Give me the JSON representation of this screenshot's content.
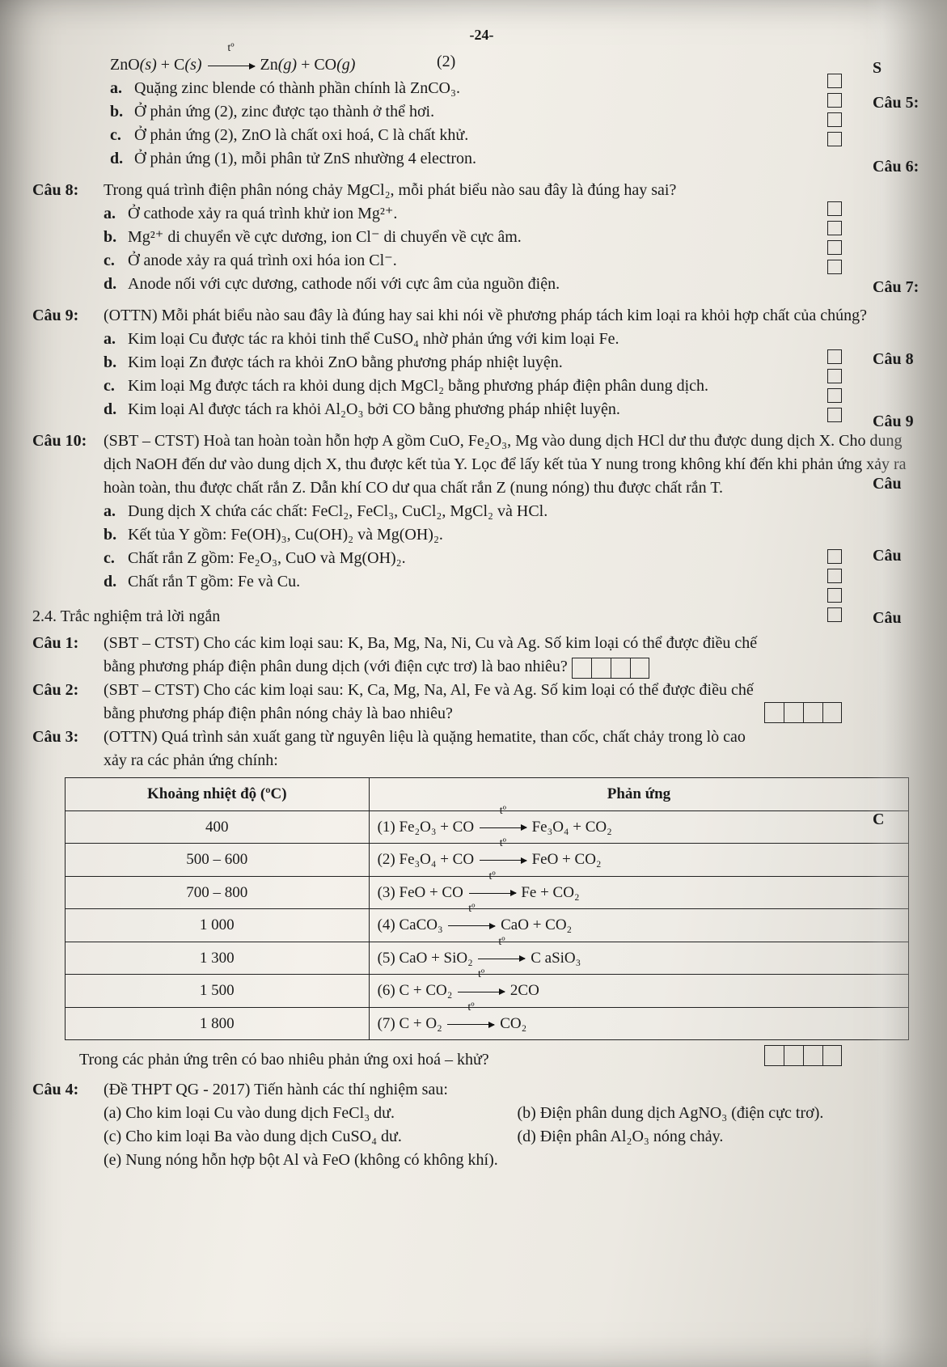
{
  "page_number": "-24-",
  "eq_marker": "(2)",
  "top_equation": "ZnO(s) + C(s)  →  Zn(g) + CO(g)",
  "top_equation_condition": "tº",
  "cau7_prev": {
    "a": "Quặng zinc blende có thành phần chính là ZnCO₃.",
    "b": "Ở phản ứng (2), zinc được tạo thành ở thể hơi.",
    "c": "Ở phản ứng (2), ZnO là chất oxi hoá, C là chất khử.",
    "d": "Ở phản ứng (1), mỗi phân tử ZnS nhường 4 electron."
  },
  "cau8": {
    "label": "Câu 8:",
    "stem": "Trong quá trình điện phân nóng chảy MgCl₂, mỗi phát biểu nào sau đây là đúng hay sai?",
    "a": "Ở cathode xảy ra quá trình khử ion Mg²⁺.",
    "b": "Mg²⁺ di chuyển về cực dương, ion Cl⁻ di chuyển về cực âm.",
    "c": "Ở anode xảy ra quá trình oxi hóa ion Cl⁻.",
    "d": "Anode nối với cực dương, cathode nối với cực âm của nguồn điện."
  },
  "cau9": {
    "label": "Câu 9:",
    "stem": "(OTTN) Mỗi phát biểu nào sau đây là đúng hay sai khi nói về phương pháp tách kim loại ra khỏi hợp chất của chúng?",
    "a": "Kim loại Cu được tác ra khỏi tinh thể CuSO₄ nhờ phản ứng với kim loại Fe.",
    "b": "Kim loại Zn được tách ra khỏi ZnO bằng phương pháp nhiệt luyện.",
    "c": "Kim loại Mg được tách ra khỏi dung dịch MgCl₂ bằng phương pháp điện phân dung dịch.",
    "d": "Kim loại Al được tách ra khỏi Al₂O₃ bởi CO bằng phương pháp nhiệt luyện."
  },
  "cau10": {
    "label": "Câu 10:",
    "stem": "(SBT – CTST) Hoà tan hoàn toàn hỗn hợp A gồm CuO, Fe₂O₃, Mg vào dung dịch HCl dư thu được dung dịch X. Cho dung dịch NaOH đến dư vào dung dịch X, thu được kết tủa Y. Lọc để lấy kết tủa Y nung trong không khí đến khi phản ứng xảy ra hoàn toàn, thu được chất rắn Z. Dẫn khí CO dư qua chất rắn Z (nung nóng) thu được chất rắn T.",
    "a": "Dung dịch X chứa các chất: FeCl₂, FeCl₃, CuCl₂, MgCl₂ và HCl.",
    "b": "Kết tủa Y gồm: Fe(OH)₃, Cu(OH)₂ và Mg(OH)₂.",
    "c": "Chất rắn Z gồm: Fe₂O₃, CuO và Mg(OH)₂.",
    "d": "Chất rắn T gồm: Fe và Cu."
  },
  "section24": "2.4. Trắc nghiệm trả lời ngắn",
  "s_cau1": {
    "label": "Câu 1:",
    "line1": "(SBT – CTST) Cho các kim loại sau: K, Ba, Mg, Na, Ni, Cu và Ag. Số kim loại có thể được điều chế",
    "line2": "bằng phương pháp điện phân dung dịch (với điện cực trơ) là bao nhiêu?"
  },
  "s_cau2": {
    "label": "Câu 2:",
    "line1": "(SBT – CTST) Cho các kim loại sau: K, Ca, Mg, Na, Al, Fe và Ag. Số kim loại có thể được điều chế",
    "line2": "bằng phương pháp điện phân nóng chảy là bao nhiêu?"
  },
  "s_cau3": {
    "label": "Câu 3:",
    "line1": "(OTTN) Quá trình sản xuất gang từ nguyên liệu là quặng hematite, than cốc, chất chảy trong lò cao",
    "line2": "xảy ra các phản ứng chính:"
  },
  "table": {
    "h1": "Khoảng nhiệt độ (ºC)",
    "h2": "Phản ứng",
    "rows": [
      {
        "t": "400",
        "n": "(1)",
        "lhs": "Fe₂O₃ + CO",
        "rhs": "Fe₃O₄ + CO₂"
      },
      {
        "t": "500 – 600",
        "n": "(2)",
        "lhs": "Fe₃O₄ + CO",
        "rhs": "FeO + CO₂"
      },
      {
        "t": "700 – 800",
        "n": "(3)",
        "lhs": "FeO + CO",
        "rhs": "Fe + CO₂"
      },
      {
        "t": "1 000",
        "n": "(4)",
        "lhs": "CaCO₃",
        "rhs": "CaO + CO₂"
      },
      {
        "t": "1 300",
        "n": "(5)",
        "lhs": "CaO + SiO₂",
        "rhs": "C aSiO₃"
      },
      {
        "t": "1 500",
        "n": "(6)",
        "lhs": "C + CO₂",
        "rhs": "2CO"
      },
      {
        "t": "1 800",
        "n": "(7)",
        "lhs": "C + O₂",
        "rhs": "CO₂"
      }
    ],
    "arrow_label": "tº"
  },
  "after_table": "Trong các phản ứng trên có bao nhiêu phản ứng oxi hoá – khử?",
  "s_cau4": {
    "label": "Câu 4:",
    "stem": "(Đề THPT QG - 2017) Tiến hành các thí nghiệm sau:",
    "a": "(a) Cho kim loại Cu vào dung dịch FeCl₃ dư.",
    "c": "(c) Cho kim loại Ba vào dung dịch CuSO₄ dư.",
    "e": "(e) Nung nóng hỗn hợp bột Al và FeO (không có không khí).",
    "b": "(b) Điện phân dung dịch AgNO₃ (điện cực trơ).",
    "d": "(d) Điện phân Al₂O₃ nóng chảy."
  },
  "right_labels": {
    "r0": "S",
    "r1": "Câu 5:",
    "r2": "Câu 6:",
    "r3": "Câu 7:",
    "r4": "Câu 8",
    "r5": "Câu 9",
    "r6": "Câu",
    "r7": "Câu",
    "r8": "Câu",
    "r9": "C"
  }
}
